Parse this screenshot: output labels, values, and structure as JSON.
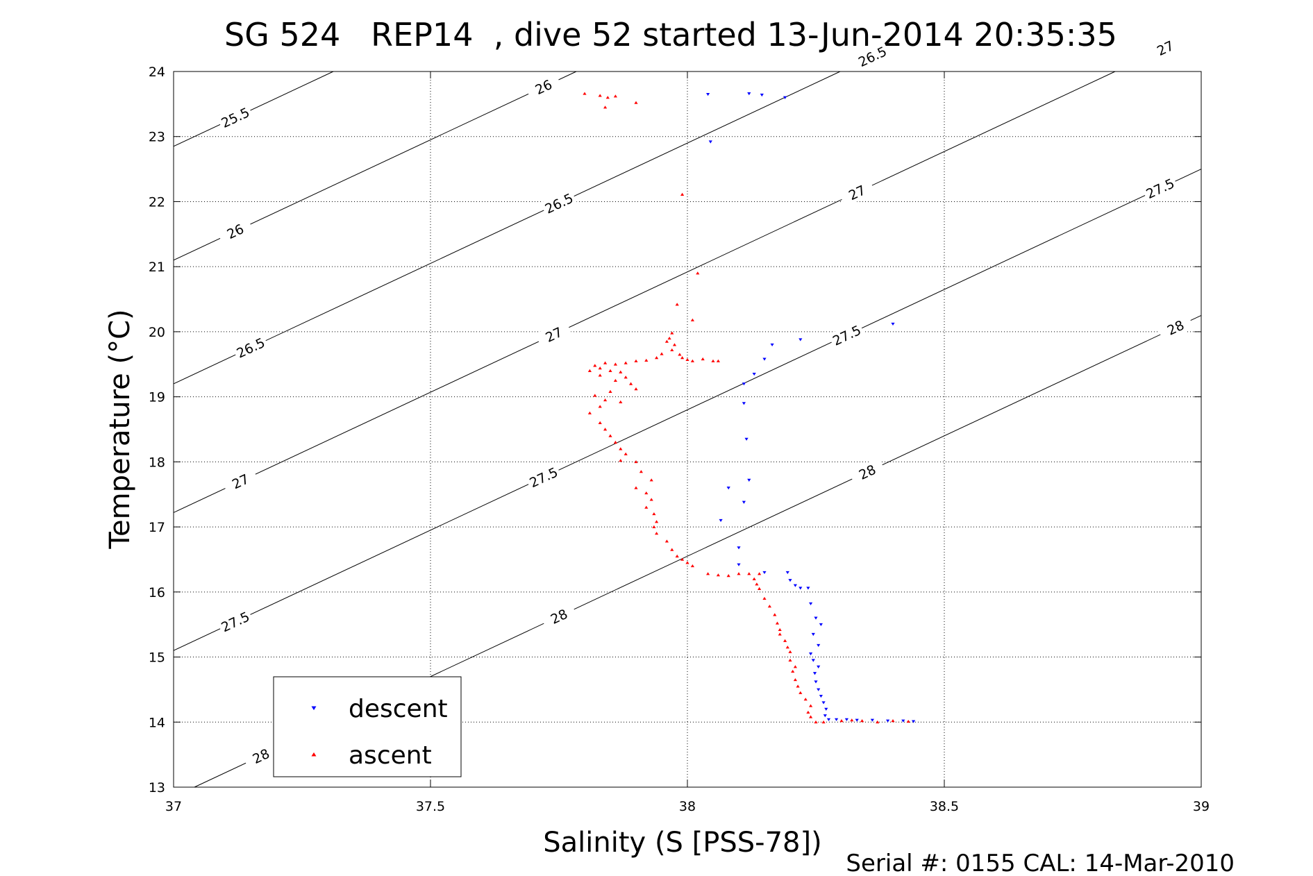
{
  "chart_data": {
    "type": "scatter",
    "title": "SG 524   REP14  , dive 52 started 13-Jun-2014 20:35:35",
    "xlabel": "Salinity (S [PSS-78])",
    "ylabel": "Temperature (°C)",
    "xlim": [
      37,
      39
    ],
    "ylim": [
      13,
      24
    ],
    "xticks": [
      "37",
      "37.5",
      "38",
      "38.5",
      "39"
    ],
    "yticks": [
      "13",
      "14",
      "15",
      "16",
      "17",
      "18",
      "19",
      "20",
      "21",
      "22",
      "23",
      "24"
    ],
    "grid": true,
    "legend_position": "bottom-left",
    "footer": "Serial #: 0155  CAL: 14-Mar-2010",
    "density_contours": {
      "color": "#000000",
      "levels": [
        {
          "value": 25.5,
          "label": "25.5",
          "label_at": [
            [
              37.12,
              23.15
            ]
          ]
        },
        {
          "value": 26,
          "label": "26",
          "label_at": [
            [
              37.12,
              21.3
            ],
            [
              37.72,
              23.2
            ]
          ]
        },
        {
          "value": 26.5,
          "label": "26.5",
          "label_at": [
            [
              37.15,
              19.45
            ],
            [
              37.75,
              21.25
            ],
            [
              38.36,
              22.95
            ]
          ]
        },
        {
          "value": 27,
          "label": "27",
          "label_at": [
            [
              37.13,
              17.5
            ],
            [
              37.74,
              19.35
            ],
            [
              38.33,
              21.05
            ],
            [
              38.93,
              22.75
            ]
          ]
        },
        {
          "value": 27.5,
          "label": "27.5",
          "label_at": [
            [
              37.12,
              15.45
            ],
            [
              37.72,
              17.3
            ],
            [
              38.31,
              19.15
            ],
            [
              38.92,
              20.85
            ]
          ]
        },
        {
          "value": 28,
          "label": "28",
          "label_at": [
            [
              37.17,
              13.35
            ],
            [
              37.75,
              15.3
            ],
            [
              38.35,
              17.3
            ],
            [
              38.95,
              19.1
            ]
          ]
        }
      ]
    },
    "series": [
      {
        "name": "descent",
        "color": "#0000ff",
        "marker": "triangle-down",
        "points": [
          [
            38.04,
            23.65
          ],
          [
            38.12,
            23.66
          ],
          [
            38.145,
            23.64
          ],
          [
            38.19,
            23.6
          ],
          [
            38.045,
            22.92
          ],
          [
            38.4,
            20.12
          ],
          [
            38.22,
            19.88
          ],
          [
            38.165,
            19.8
          ],
          [
            38.15,
            19.58
          ],
          [
            38.13,
            19.35
          ],
          [
            38.11,
            19.2
          ],
          [
            38.11,
            18.9
          ],
          [
            38.115,
            18.35
          ],
          [
            38.12,
            17.72
          ],
          [
            38.08,
            17.6
          ],
          [
            38.11,
            17.38
          ],
          [
            38.065,
            17.1
          ],
          [
            38.1,
            16.68
          ],
          [
            38.1,
            16.42
          ],
          [
            38.15,
            16.3
          ],
          [
            38.195,
            16.3
          ],
          [
            38.2,
            16.18
          ],
          [
            38.21,
            16.1
          ],
          [
            38.22,
            16.06
          ],
          [
            38.235,
            16.06
          ],
          [
            38.24,
            15.82
          ],
          [
            38.25,
            15.6
          ],
          [
            38.26,
            15.5
          ],
          [
            38.245,
            15.35
          ],
          [
            38.255,
            15.18
          ],
          [
            38.24,
            15.05
          ],
          [
            38.245,
            14.95
          ],
          [
            38.255,
            14.85
          ],
          [
            38.248,
            14.75
          ],
          [
            38.25,
            14.62
          ],
          [
            38.255,
            14.5
          ],
          [
            38.26,
            14.4
          ],
          [
            38.265,
            14.3
          ],
          [
            38.27,
            14.2
          ],
          [
            38.268,
            14.1
          ],
          [
            38.275,
            14.04
          ],
          [
            38.29,
            14.04
          ],
          [
            38.31,
            14.04
          ],
          [
            38.33,
            14.03
          ],
          [
            38.36,
            14.03
          ],
          [
            38.39,
            14.02
          ],
          [
            38.42,
            14.02
          ],
          [
            38.44,
            14.01
          ]
        ]
      },
      {
        "name": "ascent",
        "color": "#ff0000",
        "marker": "triangle-up",
        "points": [
          [
            37.8,
            23.66
          ],
          [
            37.83,
            23.63
          ],
          [
            37.845,
            23.6
          ],
          [
            37.86,
            23.62
          ],
          [
            37.84,
            23.45
          ],
          [
            37.9,
            23.52
          ],
          [
            37.99,
            22.11
          ],
          [
            38.02,
            20.9
          ],
          [
            37.98,
            20.42
          ],
          [
            38.01,
            20.18
          ],
          [
            37.97,
            19.98
          ],
          [
            37.965,
            19.9
          ],
          [
            37.96,
            19.85
          ],
          [
            37.975,
            19.8
          ],
          [
            37.97,
            19.72
          ],
          [
            37.985,
            19.65
          ],
          [
            37.99,
            19.6
          ],
          [
            38.0,
            19.57
          ],
          [
            38.01,
            19.55
          ],
          [
            38.03,
            19.58
          ],
          [
            38.05,
            19.55
          ],
          [
            38.06,
            19.55
          ],
          [
            37.95,
            19.66
          ],
          [
            37.94,
            19.6
          ],
          [
            37.92,
            19.56
          ],
          [
            37.9,
            19.55
          ],
          [
            37.88,
            19.52
          ],
          [
            37.82,
            19.48
          ],
          [
            37.83,
            19.44
          ],
          [
            37.86,
            19.5
          ],
          [
            37.84,
            19.52
          ],
          [
            37.85,
            19.4
          ],
          [
            37.87,
            19.38
          ],
          [
            37.81,
            19.4
          ],
          [
            37.83,
            19.33
          ],
          [
            37.88,
            19.3
          ],
          [
            37.86,
            19.25
          ],
          [
            37.89,
            19.2
          ],
          [
            37.9,
            19.12
          ],
          [
            37.85,
            19.08
          ],
          [
            37.82,
            19.02
          ],
          [
            37.84,
            18.95
          ],
          [
            37.87,
            18.92
          ],
          [
            37.83,
            18.85
          ],
          [
            37.81,
            18.75
          ],
          [
            37.83,
            18.6
          ],
          [
            37.84,
            18.5
          ],
          [
            37.85,
            18.4
          ],
          [
            37.86,
            18.3
          ],
          [
            37.87,
            18.2
          ],
          [
            37.88,
            18.12
          ],
          [
            37.87,
            18.02
          ],
          [
            37.9,
            18.0
          ],
          [
            37.91,
            17.85
          ],
          [
            37.93,
            17.72
          ],
          [
            37.9,
            17.6
          ],
          [
            37.92,
            17.52
          ],
          [
            37.93,
            17.42
          ],
          [
            37.92,
            17.3
          ],
          [
            37.935,
            17.2
          ],
          [
            37.94,
            17.08
          ],
          [
            37.935,
            17.0
          ],
          [
            37.94,
            16.9
          ],
          [
            37.96,
            16.78
          ],
          [
            37.97,
            16.65
          ],
          [
            37.98,
            16.55
          ],
          [
            37.99,
            16.5
          ],
          [
            38.0,
            16.45
          ],
          [
            38.01,
            16.4
          ],
          [
            38.04,
            16.28
          ],
          [
            38.06,
            16.26
          ],
          [
            38.08,
            16.25
          ],
          [
            38.1,
            16.28
          ],
          [
            38.12,
            16.28
          ],
          [
            38.14,
            16.28
          ],
          [
            38.13,
            16.2
          ],
          [
            38.135,
            16.12
          ],
          [
            38.14,
            16.05
          ],
          [
            38.15,
            15.9
          ],
          [
            38.16,
            15.78
          ],
          [
            38.17,
            15.65
          ],
          [
            38.175,
            15.52
          ],
          [
            38.18,
            15.42
          ],
          [
            38.18,
            15.35
          ],
          [
            38.19,
            15.25
          ],
          [
            38.195,
            15.15
          ],
          [
            38.2,
            15.08
          ],
          [
            38.2,
            14.95
          ],
          [
            38.21,
            14.85
          ],
          [
            38.205,
            14.78
          ],
          [
            38.21,
            14.65
          ],
          [
            38.215,
            14.55
          ],
          [
            38.22,
            14.45
          ],
          [
            38.23,
            14.35
          ],
          [
            38.24,
            14.25
          ],
          [
            38.235,
            14.15
          ],
          [
            38.24,
            14.08
          ],
          [
            38.25,
            14.0
          ],
          [
            38.265,
            14.0
          ],
          [
            38.3,
            14.02
          ],
          [
            38.32,
            14.03
          ],
          [
            38.34,
            14.02
          ],
          [
            38.37,
            14.0
          ],
          [
            38.4,
            14.02
          ],
          [
            38.43,
            14.01
          ]
        ]
      }
    ]
  }
}
